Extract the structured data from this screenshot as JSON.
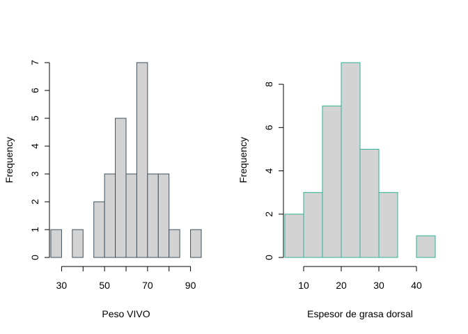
{
  "chart_data": [
    {
      "type": "bar",
      "subtype": "histogram",
      "title": "",
      "xlabel": "Peso VIVO",
      "ylabel": "Frequency",
      "bins": [
        [
          25,
          30
        ],
        [
          30,
          35
        ],
        [
          35,
          40
        ],
        [
          40,
          45
        ],
        [
          45,
          50
        ],
        [
          50,
          55
        ],
        [
          55,
          60
        ],
        [
          60,
          65
        ],
        [
          65,
          70
        ],
        [
          70,
          75
        ],
        [
          75,
          80
        ],
        [
          80,
          85
        ],
        [
          85,
          90
        ],
        [
          90,
          95
        ]
      ],
      "values": [
        1,
        0,
        1,
        0,
        2,
        3,
        5,
        3,
        7,
        3,
        3,
        1,
        0,
        1
      ],
      "xlim": [
        25,
        95
      ],
      "ylim": [
        0,
        7
      ],
      "x_ticks": [
        30,
        40,
        50,
        60,
        70,
        80,
        90
      ],
      "x_tick_labels": [
        "30",
        "",
        "50",
        "",
        "70",
        "",
        "90"
      ],
      "y_ticks": [
        0,
        1,
        2,
        3,
        4,
        5,
        6,
        7
      ],
      "y_tick_labels": [
        "0",
        "1",
        "2",
        "3",
        "4",
        "5",
        "6",
        "7"
      ],
      "bar_fill": "#d3d3d3",
      "bar_border": "#3f4f5c",
      "grid": false
    },
    {
      "type": "bar",
      "subtype": "histogram",
      "title": "",
      "xlabel": "Espesor de grasa dorsal",
      "ylabel": "Frequency",
      "bins": [
        [
          5,
          10
        ],
        [
          10,
          15
        ],
        [
          15,
          20
        ],
        [
          20,
          25
        ],
        [
          25,
          30
        ],
        [
          30,
          35
        ],
        [
          35,
          40
        ],
        [
          40,
          45
        ]
      ],
      "values": [
        2,
        3,
        7,
        9,
        5,
        3,
        0,
        1
      ],
      "xlim": [
        5,
        45
      ],
      "ylim": [
        0,
        9
      ],
      "x_ticks": [
        10,
        20,
        30,
        40
      ],
      "x_tick_labels": [
        "10",
        "20",
        "30",
        "40"
      ],
      "y_ticks": [
        0,
        2,
        4,
        6,
        8
      ],
      "y_tick_labels": [
        "0",
        "2",
        "4",
        "6",
        "8"
      ],
      "bar_fill": "#d3d3d3",
      "bar_border": "#2db395",
      "grid": false
    }
  ]
}
